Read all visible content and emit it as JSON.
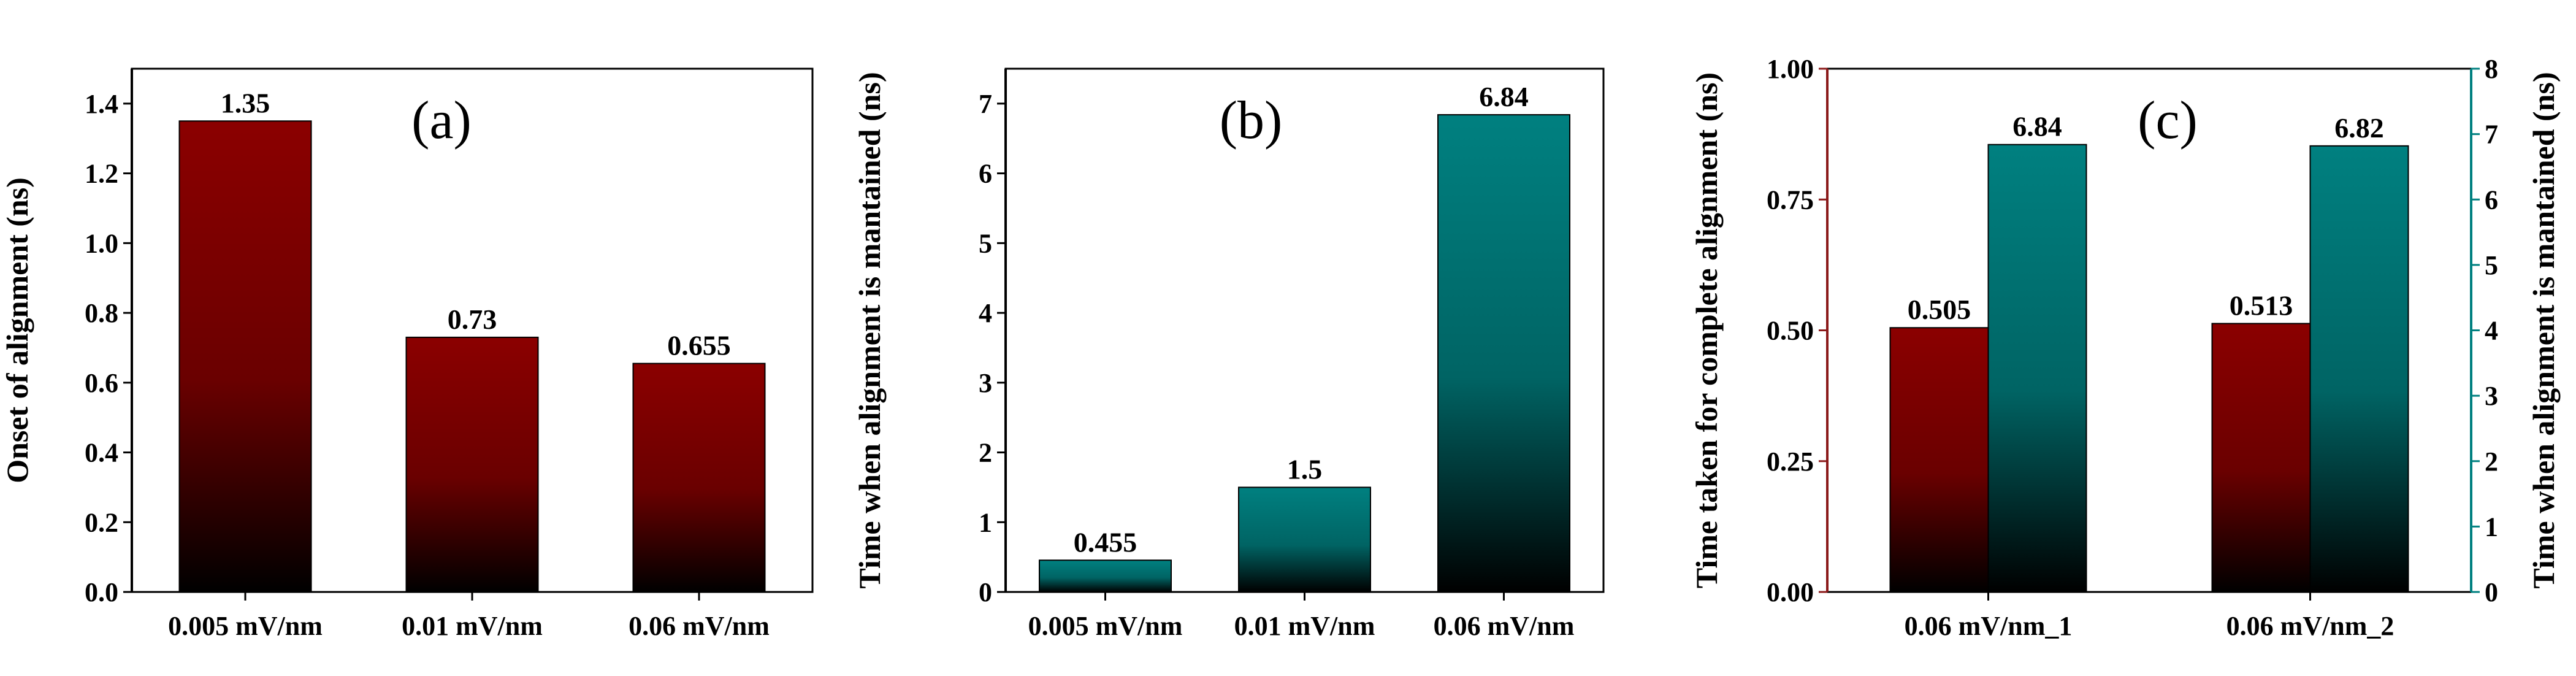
{
  "colors": {
    "red_top": "#8b0000",
    "red_bottom": "#000000",
    "teal_top": "#008080",
    "teal_bottom": "#000000",
    "red_axis": "#8b1a1a",
    "teal_axis": "#008080"
  },
  "chart_data": [
    {
      "id": "a",
      "type": "bar",
      "panel_label": "(a)",
      "categories": [
        "0.005 mV/nm",
        "0.01 mV/nm",
        "0.06 mV/nm"
      ],
      "values": [
        1.35,
        0.73,
        0.655
      ],
      "data_labels": [
        "1.35",
        "0.73",
        "0.655"
      ],
      "ylabel": "Onset of alignment (ns)",
      "ylim": [
        0,
        1.5
      ],
      "yticks": [
        0.0,
        0.2,
        0.4,
        0.6,
        0.8,
        1.0,
        1.2,
        1.4
      ],
      "ytick_labels": [
        "0.0",
        "0.2",
        "0.4",
        "0.6",
        "0.8",
        "1.0",
        "1.2",
        "1.4"
      ],
      "color": "red"
    },
    {
      "id": "b",
      "type": "bar",
      "panel_label": "(b)",
      "categories": [
        "0.005 mV/nm",
        "0.01 mV/nm",
        "0.06 mV/nm"
      ],
      "values": [
        0.455,
        1.5,
        6.84
      ],
      "data_labels": [
        "0.455",
        "1.5",
        "6.84"
      ],
      "ylabel": "Time when alignment is mantained (ns)",
      "ylim": [
        0,
        7.5
      ],
      "yticks": [
        0,
        1,
        2,
        3,
        4,
        5,
        6,
        7
      ],
      "ytick_labels": [
        "0",
        "1",
        "2",
        "3",
        "4",
        "5",
        "6",
        "7"
      ],
      "color": "teal"
    },
    {
      "id": "c",
      "type": "bar",
      "panel_label": "(c)",
      "categories": [
        "0.06 mV/nm_1",
        "0.06 mV/nm_2"
      ],
      "series": [
        {
          "name": "Time taken for complete alignment",
          "axis": "left",
          "values": [
            0.505,
            0.513
          ],
          "data_labels": [
            "0.505",
            "0.513"
          ],
          "color": "red"
        },
        {
          "name": "Time when alignment is mantained",
          "axis": "right",
          "values": [
            6.84,
            6.82
          ],
          "data_labels": [
            "6.84",
            "6.82"
          ],
          "color": "teal"
        }
      ],
      "ylabel": "Time taken for complete alignment (ns)",
      "ylim": [
        0,
        1.0
      ],
      "yticks": [
        0,
        0.25,
        0.5,
        0.75,
        1.0
      ],
      "ytick_labels": [
        "0.00",
        "0.25",
        "0.50",
        "0.75",
        "1.00"
      ],
      "ylabel_right": "Time when alignment is mantained (ns)",
      "ylim_right": [
        0,
        8
      ],
      "yticks_right": [
        0,
        1,
        2,
        3,
        4,
        5,
        6,
        7,
        8
      ],
      "ytick_labels_right": [
        "0",
        "1",
        "2",
        "3",
        "4",
        "5",
        "6",
        "7",
        "8"
      ]
    }
  ]
}
